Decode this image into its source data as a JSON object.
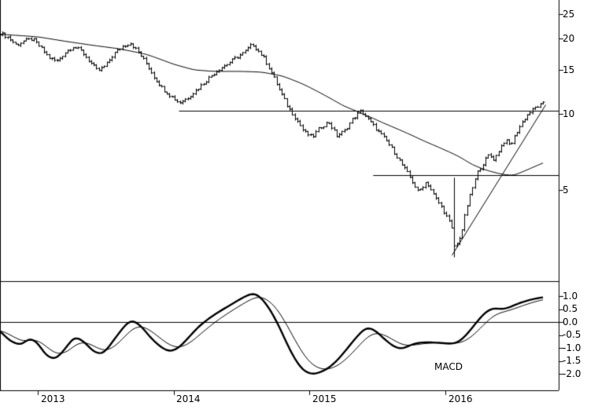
{
  "chart_data": {
    "type": "ohlc",
    "title": "",
    "description": "Weekly OHLC price chart (log scale) with long moving average, horizontal support/resistance lines, rising trendline from 2016 low, and MACD indicator sub-panel",
    "x_tick_labels": [
      "2013",
      "2014",
      "2015",
      "2016"
    ],
    "x_ticks": [
      2013,
      2014,
      2015,
      2016
    ],
    "x_range": [
      2012.72,
      2016.83
    ],
    "grid": "off",
    "price_panel": {
      "y_scale": "log",
      "y_range": [
        2.4,
        26
      ],
      "y_ticks": [
        25,
        20,
        15,
        10,
        5
      ],
      "y_tick_labels": [
        "25",
        "20",
        "15",
        "10",
        "5"
      ],
      "price_anchors": [
        [
          2012.72,
          21.0
        ],
        [
          2012.78,
          20.2
        ],
        [
          2012.84,
          18.8
        ],
        [
          2012.9,
          19.6
        ],
        [
          2012.96,
          19.9
        ],
        [
          2013.02,
          18.4
        ],
        [
          2013.08,
          16.8
        ],
        [
          2013.14,
          16.2
        ],
        [
          2013.2,
          17.6
        ],
        [
          2013.26,
          18.6
        ],
        [
          2013.32,
          17.8
        ],
        [
          2013.38,
          16.2
        ],
        [
          2013.44,
          14.8
        ],
        [
          2013.5,
          15.6
        ],
        [
          2013.56,
          17.4
        ],
        [
          2013.62,
          18.6
        ],
        [
          2013.68,
          19.2
        ],
        [
          2013.74,
          17.6
        ],
        [
          2013.8,
          15.8
        ],
        [
          2013.86,
          13.9
        ],
        [
          2013.92,
          12.6
        ],
        [
          2013.98,
          11.8
        ],
        [
          2014.04,
          11.1
        ],
        [
          2014.1,
          11.6
        ],
        [
          2014.16,
          12.4
        ],
        [
          2014.22,
          13.3
        ],
        [
          2014.28,
          14.3
        ],
        [
          2014.34,
          15.2
        ],
        [
          2014.4,
          15.9
        ],
        [
          2014.46,
          16.8
        ],
        [
          2014.52,
          17.6
        ],
        [
          2014.58,
          19.0
        ],
        [
          2014.62,
          17.9
        ],
        [
          2014.66,
          16.8
        ],
        [
          2014.72,
          14.6
        ],
        [
          2014.78,
          12.4
        ],
        [
          2014.84,
          10.7
        ],
        [
          2014.9,
          9.6
        ],
        [
          2014.96,
          8.5
        ],
        [
          2015.02,
          8.1
        ],
        [
          2015.08,
          8.9
        ],
        [
          2015.14,
          9.3
        ],
        [
          2015.2,
          8.2
        ],
        [
          2015.26,
          8.6
        ],
        [
          2015.32,
          9.6
        ],
        [
          2015.38,
          10.3
        ],
        [
          2015.44,
          9.4
        ],
        [
          2015.5,
          8.6
        ],
        [
          2015.56,
          7.9
        ],
        [
          2015.62,
          7.1
        ],
        [
          2015.68,
          6.3
        ],
        [
          2015.74,
          5.6
        ],
        [
          2015.8,
          4.9
        ],
        [
          2015.86,
          5.4
        ],
        [
          2015.92,
          4.7
        ],
        [
          2015.98,
          4.2
        ],
        [
          2016.04,
          3.6
        ],
        [
          2016.08,
          3.0
        ],
        [
          2016.12,
          3.4
        ],
        [
          2016.16,
          4.3
        ],
        [
          2016.2,
          5.1
        ],
        [
          2016.24,
          5.9
        ],
        [
          2016.28,
          6.4
        ],
        [
          2016.32,
          6.9
        ],
        [
          2016.36,
          6.6
        ],
        [
          2016.4,
          7.3
        ],
        [
          2016.44,
          7.9
        ],
        [
          2016.48,
          7.5
        ],
        [
          2016.52,
          8.4
        ],
        [
          2016.56,
          9.2
        ],
        [
          2016.6,
          9.9
        ],
        [
          2016.66,
          10.6
        ],
        [
          2016.72,
          11.0
        ]
      ],
      "spike_bar": {
        "t": 2016.07,
        "high": 5.6,
        "low": 2.7,
        "close": 3.0
      },
      "ma_anchors": [
        [
          2012.72,
          20.8
        ],
        [
          2013.0,
          20.3
        ],
        [
          2013.2,
          19.5
        ],
        [
          2013.4,
          18.8
        ],
        [
          2013.6,
          18.2
        ],
        [
          2013.8,
          17.3
        ],
        [
          2014.0,
          15.8
        ],
        [
          2014.15,
          15.0
        ],
        [
          2014.3,
          14.8
        ],
        [
          2014.5,
          14.8
        ],
        [
          2014.65,
          14.7
        ],
        [
          2014.8,
          14.2
        ],
        [
          2014.95,
          13.2
        ],
        [
          2015.1,
          12.0
        ],
        [
          2015.25,
          10.8
        ],
        [
          2015.4,
          10.0
        ],
        [
          2015.55,
          9.2
        ],
        [
          2015.7,
          8.5
        ],
        [
          2015.85,
          7.8
        ],
        [
          2016.0,
          7.2
        ],
        [
          2016.1,
          6.8
        ],
        [
          2016.2,
          6.3
        ],
        [
          2016.3,
          6.0
        ],
        [
          2016.4,
          5.8
        ],
        [
          2016.5,
          5.7
        ],
        [
          2016.6,
          6.0
        ],
        [
          2016.72,
          6.4
        ]
      ],
      "hlines": [
        {
          "value": 10.35,
          "from_t": 2014.04
        },
        {
          "value": 5.75,
          "from_t": 2015.47
        }
      ],
      "trendline": {
        "t1": 2016.05,
        "v1": 2.75,
        "t2": 2016.74,
        "v2": 10.9
      }
    },
    "macd_panel": {
      "label": "MACD",
      "y_ticks": [
        1.0,
        0.5,
        0.0,
        -0.5,
        -1.0,
        -1.5,
        -2.0
      ],
      "y_tick_labels": [
        "1.0",
        "0.5",
        "0.0",
        "-0.5",
        "-1.0",
        "-1.5",
        "-2.0"
      ],
      "zero_line": 0,
      "macd_anchors": [
        [
          2012.72,
          -0.35
        ],
        [
          2012.8,
          -0.75
        ],
        [
          2012.88,
          -0.9
        ],
        [
          2012.94,
          -0.6
        ],
        [
          2013.0,
          -0.8
        ],
        [
          2013.06,
          -1.3
        ],
        [
          2013.13,
          -1.45
        ],
        [
          2013.2,
          -1.05
        ],
        [
          2013.27,
          -0.55
        ],
        [
          2013.34,
          -0.75
        ],
        [
          2013.41,
          -1.15
        ],
        [
          2013.48,
          -1.25
        ],
        [
          2013.56,
          -0.7
        ],
        [
          2013.63,
          -0.2
        ],
        [
          2013.69,
          0.1
        ],
        [
          2013.76,
          -0.15
        ],
        [
          2013.83,
          -0.6
        ],
        [
          2013.9,
          -0.95
        ],
        [
          2013.97,
          -1.15
        ],
        [
          2014.04,
          -1.0
        ],
        [
          2014.11,
          -0.6
        ],
        [
          2014.18,
          -0.2
        ],
        [
          2014.25,
          0.1
        ],
        [
          2014.32,
          0.35
        ],
        [
          2014.4,
          0.6
        ],
        [
          2014.48,
          0.85
        ],
        [
          2014.55,
          1.05
        ],
        [
          2014.6,
          1.12
        ],
        [
          2014.66,
          0.85
        ],
        [
          2014.72,
          0.4
        ],
        [
          2014.78,
          -0.2
        ],
        [
          2014.84,
          -0.9
        ],
        [
          2014.9,
          -1.5
        ],
        [
          2014.96,
          -1.9
        ],
        [
          2015.02,
          -2.02
        ],
        [
          2015.08,
          -1.95
        ],
        [
          2015.15,
          -1.75
        ],
        [
          2015.22,
          -1.4
        ],
        [
          2015.29,
          -0.95
        ],
        [
          2015.36,
          -0.5
        ],
        [
          2015.42,
          -0.2
        ],
        [
          2015.48,
          -0.3
        ],
        [
          2015.55,
          -0.65
        ],
        [
          2015.62,
          -0.95
        ],
        [
          2015.68,
          -1.05
        ],
        [
          2015.74,
          -0.9
        ],
        [
          2015.8,
          -0.8
        ],
        [
          2015.87,
          -0.78
        ],
        [
          2015.94,
          -0.8
        ],
        [
          2016.0,
          -0.82
        ],
        [
          2016.06,
          -0.85
        ],
        [
          2016.12,
          -0.7
        ],
        [
          2016.18,
          -0.35
        ],
        [
          2016.24,
          0.05
        ],
        [
          2016.3,
          0.4
        ],
        [
          2016.36,
          0.55
        ],
        [
          2016.42,
          0.48
        ],
        [
          2016.48,
          0.58
        ],
        [
          2016.54,
          0.72
        ],
        [
          2016.6,
          0.82
        ],
        [
          2016.66,
          0.9
        ],
        [
          2016.72,
          0.95
        ]
      ]
    },
    "colors": {
      "line": "#000000",
      "background": "#ffffff"
    }
  }
}
